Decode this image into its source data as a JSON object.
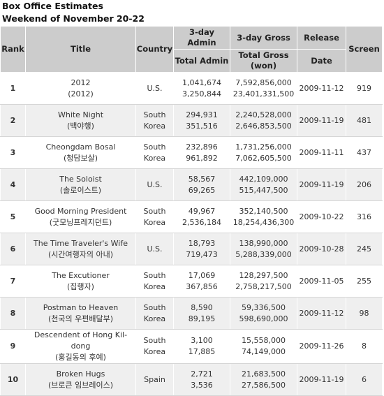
{
  "heading": {
    "title": "Box Office Estimates",
    "subtitle": "Weekend of November 20-22"
  },
  "columns": {
    "rank": "Rank",
    "title": "Title",
    "country": "Country",
    "admin_3day": "3-day Admin",
    "admin_total": "Total Admin",
    "gross_3day": "3-day Gross",
    "gross_total": "Total Gross (won)",
    "release_1": "Release",
    "release_2": "Date",
    "screen": "Screen"
  },
  "rows": [
    {
      "rank": "1",
      "title_en": "2012",
      "title_kr": "(2012)",
      "country": "U.S.",
      "admin_3day": "1,041,674",
      "admin_total": "3,250,844",
      "gross_3day": "7,592,856,000",
      "gross_total": "23,401,331,500",
      "release": "2009-11-12",
      "screen": "919"
    },
    {
      "rank": "2",
      "title_en": "White Night",
      "title_kr": "(백야행)",
      "country": "South Korea",
      "admin_3day": "294,931",
      "admin_total": "351,516",
      "gross_3day": "2,240,528,000",
      "gross_total": "2,646,853,500",
      "release": "2009-11-19",
      "screen": "481"
    },
    {
      "rank": "3",
      "title_en": "Cheongdam Bosal",
      "title_kr": "(청담보살)",
      "country": "South Korea",
      "admin_3day": "232,896",
      "admin_total": "961,892",
      "gross_3day": "1,731,256,000",
      "gross_total": "7,062,605,500",
      "release": "2009-11-11",
      "screen": "437"
    },
    {
      "rank": "4",
      "title_en": "The Soloist",
      "title_kr": "(솔로이스트)",
      "country": "U.S.",
      "admin_3day": "58,567",
      "admin_total": "69,265",
      "gross_3day": "442,109,000",
      "gross_total": "515,447,500",
      "release": "2009-11-19",
      "screen": "206"
    },
    {
      "rank": "5",
      "title_en": "Good Morning President",
      "title_kr": "(굿모닝프레지던트)",
      "country": "South Korea",
      "admin_3day": "49,967",
      "admin_total": "2,536,184",
      "gross_3day": "352,140,500",
      "gross_total": "18,254,436,300",
      "release": "2009-10-22",
      "screen": "316"
    },
    {
      "rank": "6",
      "title_en": "The Time Traveler's Wife",
      "title_kr": "(시간여행자의 아내)",
      "country": "U.S.",
      "admin_3day": "18,793",
      "admin_total": "719,473",
      "gross_3day": "138,990,000",
      "gross_total": "5,288,339,000",
      "release": "2009-10-28",
      "screen": "245"
    },
    {
      "rank": "7",
      "title_en": "The Excutioner",
      "title_kr": "(집행자)",
      "country": "South Korea",
      "admin_3day": "17,069",
      "admin_total": "367,856",
      "gross_3day": "128,297,500",
      "gross_total": "2,758,217,500",
      "release": "2009-11-05",
      "screen": "255"
    },
    {
      "rank": "8",
      "title_en": "Postman to Heaven",
      "title_kr": "(천국의 우편배달부)",
      "country": "South Korea",
      "admin_3day": "8,590",
      "admin_total": "89,195",
      "gross_3day": "59,336,500",
      "gross_total": "598,690,000",
      "release": "2009-11-12",
      "screen": "98"
    },
    {
      "rank": "9",
      "title_en": "Descendent of Hong Kil-dong",
      "title_kr": "(홍길동의 후예)",
      "country": "South Korea",
      "admin_3day": "3,100",
      "admin_total": "17,885",
      "gross_3day": "15,558,000",
      "gross_total": "74,149,000",
      "release": "2009-11-26",
      "screen": "8"
    },
    {
      "rank": "10",
      "title_en": "Broken Hugs",
      "title_kr": "(브로큰 임브레이스)",
      "country": "Spain",
      "admin_3day": "2,721",
      "admin_total": "3,536",
      "gross_3day": "21,683,500",
      "gross_total": "27,586,500",
      "release": "2009-11-19",
      "screen": "6"
    }
  ]
}
